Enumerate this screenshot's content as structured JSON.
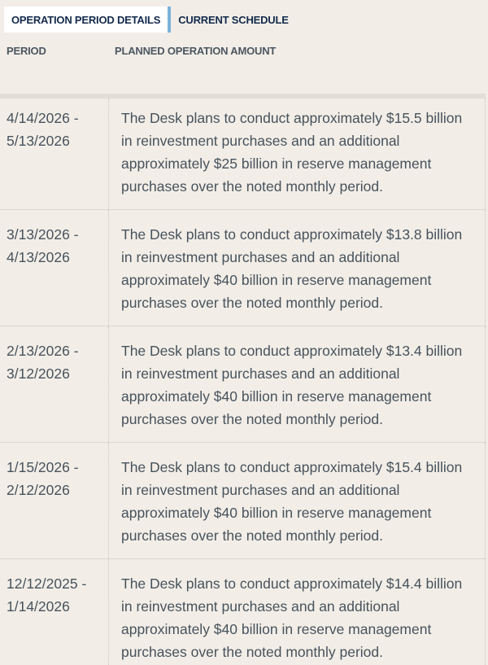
{
  "tabs": {
    "items": [
      {
        "label": "OPERATION PERIOD DETAILS",
        "active": true
      },
      {
        "label": "CURRENT SCHEDULE",
        "active": false
      }
    ]
  },
  "table": {
    "columns": [
      {
        "label": "PERIOD"
      },
      {
        "label": "PLANNED OPERATION AMOUNT"
      }
    ],
    "rows": [
      {
        "period": "4/14/2026 - 5/13/2026",
        "description": "The Desk plans to conduct approximately $15.5 billion in reinvestment purchases and an additional approximately $25 billion in reserve management purchases over the noted monthly period."
      },
      {
        "period": "3/13/2026 - 4/13/2026",
        "description": "The Desk plans to conduct approximately $13.8 billion in reinvestment purchases and an additional approximately $40 billion in reserve management purchases over the noted monthly period."
      },
      {
        "period": "2/13/2026 - 3/12/2026",
        "description": "The Desk plans to conduct approximately $13.4 billion in reinvestment purchases and an additional approximately $40 billion in reserve management purchases over the noted monthly period."
      },
      {
        "period": "1/15/2026 - 2/12/2026",
        "description": "The Desk plans to conduct approximately $15.4 billion in reinvestment purchases and an additional approximately $40 billion in reserve management purchases over the noted monthly period."
      },
      {
        "period": "12/12/2025 - 1/14/2026",
        "description": "The Desk plans to conduct approximately $14.4 billion in reinvestment purchases and an additional approximately $40 billion in reserve management purchases over the noted monthly period."
      }
    ]
  },
  "colors": {
    "bg": "#f2eee7",
    "tab_active_bg": "#ffffff",
    "tab_text": "#132a4c",
    "accent_blue": "#7cb1da",
    "header_text": "#4c5661",
    "body_text": "#48525c",
    "band": "#e0ded7",
    "divider": "#dbd8d1",
    "dotted": "#c9c6be"
  }
}
